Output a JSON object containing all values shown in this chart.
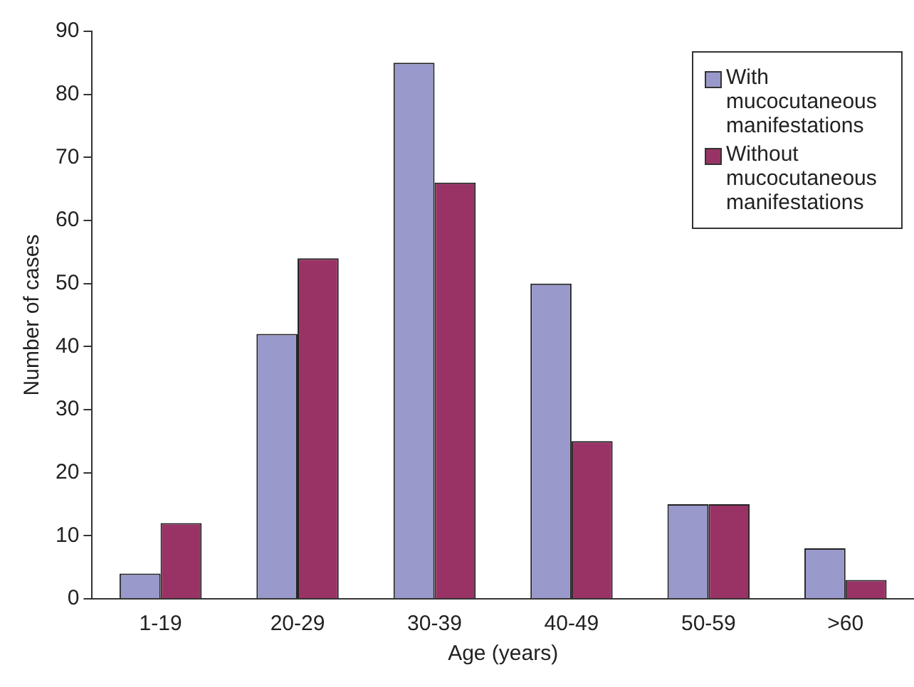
{
  "chart_data": {
    "type": "bar",
    "xlabel": "Age (years)",
    "ylabel": "Number of cases",
    "categories": [
      "1-19",
      "20-29",
      "30-39",
      "40-49",
      "50-59",
      ">60"
    ],
    "series": [
      {
        "name": "With mucocutaneous manifestations",
        "color": "#9999cc",
        "values": [
          4,
          42,
          85,
          50,
          15,
          8
        ]
      },
      {
        "name": "Without mucocutaneous manifestations",
        "color": "#993366",
        "values": [
          12,
          54,
          66,
          25,
          15,
          3
        ]
      }
    ],
    "ylim": [
      0,
      90
    ],
    "yticks": [
      0,
      10,
      20,
      30,
      40,
      50,
      60,
      70,
      80,
      90
    ],
    "grid": false,
    "legend": "top right"
  }
}
